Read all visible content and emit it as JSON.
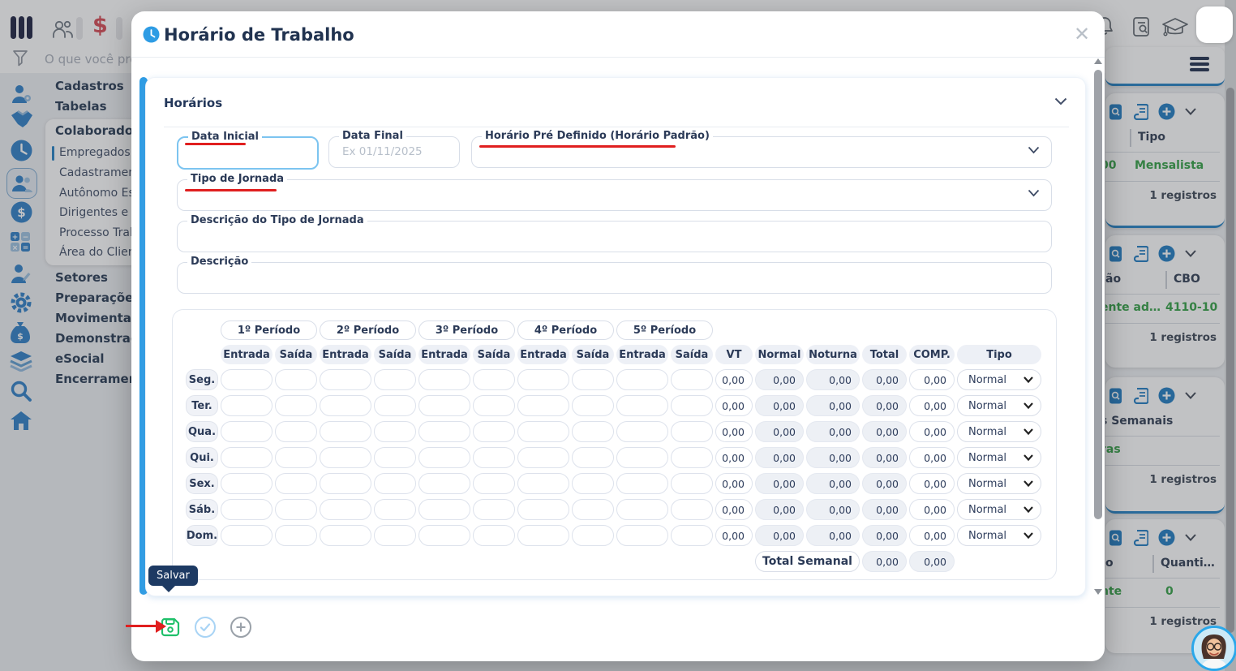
{
  "topbar": {
    "search_placeholder": "O que você pro",
    "dollar": "$"
  },
  "sidebar": {
    "items_top": [
      "Cadastros",
      "Tabelas"
    ],
    "group_title": "Colaboradore",
    "group_items": [
      "Empregados",
      "Cadastrament",
      "Autônomo Esp",
      "Dirigentes e C",
      "Processo Trab",
      "Área do Client"
    ],
    "items_bottom": [
      "Setores",
      "Preparações",
      "Movimentaçõ",
      "Demonstraçõ",
      "eSocial",
      "Encerramento"
    ]
  },
  "cards": [
    {
      "col_left": "",
      "col_right": "Tipo",
      "val_left": "00",
      "val_right": "Mensalista",
      "footer": "1 registros"
    },
    {
      "col_left": "ão",
      "col_right": "CBO",
      "val_left": "ente ad…",
      "val_right": "4110-10",
      "footer": "1 registros"
    },
    {
      "col_left": "s Semanais",
      "col_right": "",
      "val_left": "ras",
      "val_right": "",
      "footer": "1 registros"
    },
    {
      "col_left": "o",
      "col_right": "Quanti…",
      "val_left": "nte",
      "val_right": "0",
      "footer": "1 registros"
    }
  ],
  "modal": {
    "title": "Horário de Trabalho",
    "close_label": "✕",
    "panel_title": "Horários",
    "fields": {
      "data_inicial": {
        "label": "Data Inicial",
        "value": ""
      },
      "data_final": {
        "label": "Data Final",
        "placeholder": "Ex 01/11/2025"
      },
      "horario_pre": {
        "label": "Horário Pré Definido (Horário Padrão)",
        "value": ""
      },
      "tipo_jornada": {
        "label": "Tipo de Jornada",
        "value": ""
      },
      "desc_tipo": {
        "label": "Descrição do Tipo de Jornada",
        "value": ""
      },
      "descricao": {
        "label": "Descrição",
        "value": ""
      }
    },
    "table": {
      "periods": [
        "1º Período",
        "2º Período",
        "3º Período",
        "4º Período",
        "5º Período"
      ],
      "time_headers": [
        "Entrada",
        "Saída"
      ],
      "metric_headers": [
        "VT",
        "Normal",
        "Noturna",
        "Total",
        "COMP.",
        "Tipo"
      ],
      "days": [
        "Seg.",
        "Ter.",
        "Qua.",
        "Qui.",
        "Sex.",
        "Sáb.",
        "Dom."
      ],
      "zero": "0,00",
      "tipo_value": "Normal",
      "total_label": "Total Semanal",
      "total_values": [
        "0,00",
        "0,00"
      ]
    },
    "tooltip": "Salvar"
  },
  "colors": {
    "accent_blue": "#2e9ce4",
    "card_border_blue": "#1f7ec2",
    "value_green": "#2f9e41",
    "save_green": "#1fc06a",
    "annotation_red": "#e01f1f",
    "tooltip_navy": "#1d3a63"
  }
}
